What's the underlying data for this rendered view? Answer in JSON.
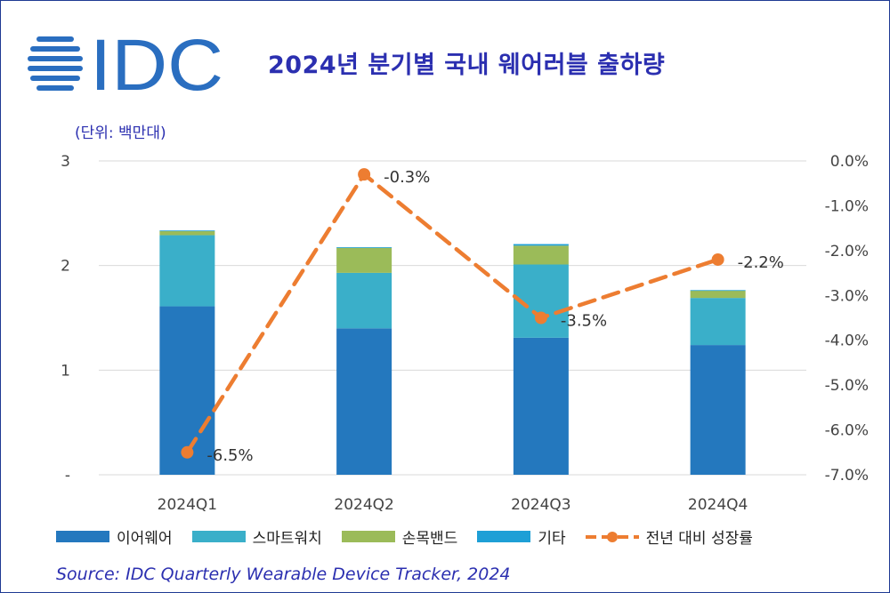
{
  "header": {
    "logo_text": "IDC",
    "title": "2024년 분기별 국내 웨어러블 출하량",
    "unit": "(단위: 백만대)"
  },
  "chart_data": {
    "type": "bar",
    "stacked": true,
    "categories": [
      "2024Q1",
      "2024Q2",
      "2024Q3",
      "2024Q4"
    ],
    "series": [
      {
        "name": "이어웨어",
        "color": "#2478be",
        "values": [
          1.61,
          1.4,
          1.31,
          1.24
        ]
      },
      {
        "name": "스마트워치",
        "color": "#3aafc9",
        "values": [
          0.68,
          0.53,
          0.7,
          0.45
        ]
      },
      {
        "name": "손목밴드",
        "color": "#9bbb59",
        "values": [
          0.04,
          0.24,
          0.18,
          0.07
        ]
      },
      {
        "name": "기타",
        "color": "#1e9fd6",
        "values": [
          0.005,
          0.005,
          0.015,
          0.005
        ]
      }
    ],
    "line_series": {
      "name": "전년 대비 성장률",
      "color": "#ed7d31",
      "axis": "right",
      "values": [
        -6.5,
        -0.3,
        -3.5,
        -2.2
      ],
      "labels": [
        "-6.5%",
        "-0.3%",
        "-3.5%",
        "-2.2%"
      ]
    },
    "y_left": {
      "ylim": [
        0,
        3
      ],
      "ticks": [
        0,
        1,
        2,
        3
      ],
      "tick_labels": [
        "-",
        "1",
        "2",
        "3"
      ]
    },
    "y_right": {
      "ylim": [
        -7.0,
        0.0
      ],
      "ticks": [
        0,
        -1,
        -2,
        -3,
        -4,
        -5,
        -6,
        -7
      ],
      "tick_labels": [
        "0.0%",
        "-1.0%",
        "-2.0%",
        "-3.0%",
        "-4.0%",
        "-5.0%",
        "-6.0%",
        "-7.0%"
      ]
    },
    "grid": true,
    "legend_position": "bottom"
  },
  "source": "Source: IDC Quarterly Wearable Device Tracker, 2024"
}
